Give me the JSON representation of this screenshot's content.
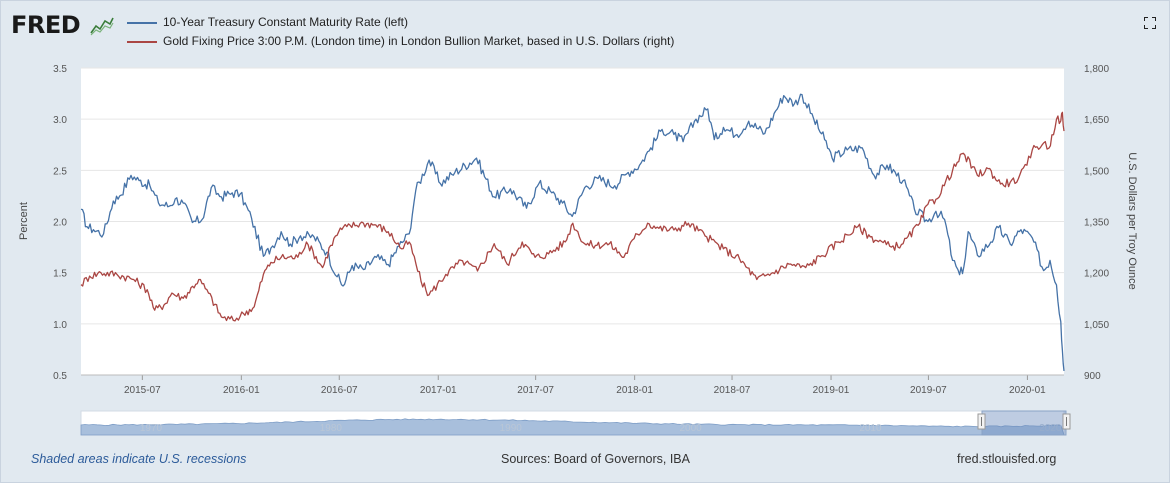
{
  "header": {
    "logo_text": "FRED",
    "fullscreen_icon": "expand-icon"
  },
  "legend": [
    {
      "label": "10-Year Treasury Constant Maturity Rate (left)",
      "color": "#4572a7"
    },
    {
      "label": "Gold Fixing Price 3:00 P.M. (London time) in London Bullion Market, based in U.S. Dollars (right)",
      "color": "#aa4643"
    }
  ],
  "chart_data": {
    "type": "line",
    "title": "",
    "xlabel": "",
    "ylabel_left": "Percent",
    "ylabel_right": "U.S. Dollars per Troy Ounce",
    "xlim": [
      "2015-03-09",
      "2020-03-09"
    ],
    "ylim_left": [
      0.5,
      3.5
    ],
    "ylim_right": [
      900,
      1800
    ],
    "yticks_left": [
      "0.5",
      "1.0",
      "1.5",
      "2.0",
      "2.5",
      "3.0",
      "3.5"
    ],
    "yticks_right": [
      "900",
      "1,050",
      "1,200",
      "1,350",
      "1,500",
      "1,650",
      "1,800"
    ],
    "xticks": [
      "2015-07",
      "2016-01",
      "2016-07",
      "2017-01",
      "2017-07",
      "2018-01",
      "2018-07",
      "2019-01",
      "2019-07",
      "2020-01"
    ],
    "grid": true,
    "series": [
      {
        "name": "10-Year Treasury Constant Maturity Rate (left)",
        "axis": "left",
        "color": "#4572a7",
        "x": [
          "2015-03-09",
          "2015-03-20",
          "2015-04-01",
          "2015-04-20",
          "2015-05-08",
          "2015-05-20",
          "2015-06-10",
          "2015-06-25",
          "2015-07-15",
          "2015-07-31",
          "2015-08-20",
          "2015-08-31",
          "2015-09-15",
          "2015-10-02",
          "2015-10-20",
          "2015-11-06",
          "2015-11-25",
          "2015-12-15",
          "2015-12-30",
          "2016-01-20",
          "2016-02-11",
          "2016-02-25",
          "2016-03-15",
          "2016-04-01",
          "2016-04-20",
          "2016-05-15",
          "2016-06-08",
          "2016-06-27",
          "2016-07-08",
          "2016-07-25",
          "2016-08-15",
          "2016-09-08",
          "2016-09-30",
          "2016-10-20",
          "2016-11-08",
          "2016-11-20",
          "2016-12-15",
          "2017-01-05",
          "2017-02-01",
          "2017-03-13",
          "2017-04-15",
          "2017-05-15",
          "2017-06-14",
          "2017-07-07",
          "2017-07-31",
          "2017-08-20",
          "2017-09-07",
          "2017-09-30",
          "2017-10-25",
          "2017-11-25",
          "2017-12-20",
          "2018-01-10",
          "2018-01-31",
          "2018-02-21",
          "2018-03-15",
          "2018-04-01",
          "2018-04-25",
          "2018-05-17",
          "2018-05-29",
          "2018-06-15",
          "2018-07-10",
          "2018-08-01",
          "2018-08-31",
          "2018-09-20",
          "2018-10-05",
          "2018-10-25",
          "2018-11-08",
          "2018-11-30",
          "2018-12-20",
          "2019-01-03",
          "2019-01-31",
          "2019-02-28",
          "2019-03-22",
          "2019-04-15",
          "2019-05-15",
          "2019-06-05",
          "2019-06-30",
          "2019-07-15",
          "2019-07-31",
          "2019-08-15",
          "2019-08-28",
          "2019-09-05",
          "2019-09-13",
          "2019-09-30",
          "2019-10-25",
          "2019-11-08",
          "2019-11-30",
          "2019-12-20",
          "2020-01-10",
          "2020-01-31",
          "2020-02-12",
          "2020-02-24",
          "2020-03-03",
          "2020-03-06",
          "2020-03-09"
        ],
        "values": [
          2.12,
          1.95,
          1.92,
          1.88,
          2.2,
          2.25,
          2.45,
          2.4,
          2.35,
          2.18,
          2.15,
          2.22,
          2.18,
          1.99,
          2.02,
          2.33,
          2.24,
          2.28,
          2.27,
          2.03,
          1.66,
          1.74,
          1.9,
          1.78,
          1.86,
          1.85,
          1.7,
          1.46,
          1.37,
          1.57,
          1.53,
          1.65,
          1.58,
          1.76,
          1.88,
          2.3,
          2.6,
          2.37,
          2.48,
          2.62,
          2.24,
          2.32,
          2.13,
          2.37,
          2.28,
          2.18,
          2.05,
          2.33,
          2.42,
          2.35,
          2.48,
          2.55,
          2.72,
          2.9,
          2.85,
          2.78,
          3.0,
          3.1,
          2.8,
          2.92,
          2.85,
          2.98,
          2.86,
          3.08,
          3.23,
          3.15,
          3.24,
          3.0,
          2.8,
          2.62,
          2.7,
          2.72,
          2.45,
          2.55,
          2.4,
          2.12,
          2.0,
          2.1,
          2.02,
          1.62,
          1.48,
          1.56,
          1.9,
          1.67,
          1.8,
          1.94,
          1.78,
          1.92,
          1.84,
          1.52,
          1.62,
          1.38,
          1.02,
          0.74,
          0.54
        ]
      },
      {
        "name": "Gold Fixing Price 3:00 P.M. (London time) in London Bullion Market, based in U.S. Dollars (right)",
        "axis": "right",
        "color": "#aa4643",
        "x": [
          "2015-03-09",
          "2015-03-25",
          "2015-04-15",
          "2015-05-15",
          "2015-06-15",
          "2015-07-10",
          "2015-07-24",
          "2015-08-10",
          "2015-08-25",
          "2015-09-15",
          "2015-10-14",
          "2015-11-01",
          "2015-11-25",
          "2015-12-17",
          "2016-01-05",
          "2016-01-25",
          "2016-02-11",
          "2016-02-25",
          "2016-03-15",
          "2016-04-15",
          "2016-05-01",
          "2016-05-31",
          "2016-06-15",
          "2016-06-30",
          "2016-07-15",
          "2016-08-15",
          "2016-09-07",
          "2016-09-30",
          "2016-10-25",
          "2016-11-08",
          "2016-11-30",
          "2016-12-15",
          "2017-01-15",
          "2017-02-15",
          "2017-03-15",
          "2017-04-15",
          "2017-05-09",
          "2017-06-06",
          "2017-06-30",
          "2017-07-25",
          "2017-08-25",
          "2017-09-08",
          "2017-09-30",
          "2017-10-20",
          "2017-11-15",
          "2017-12-12",
          "2017-12-31",
          "2018-01-25",
          "2018-02-15",
          "2018-03-15",
          "2018-04-11",
          "2018-05-15",
          "2018-06-15",
          "2018-07-15",
          "2018-08-16",
          "2018-09-15",
          "2018-10-15",
          "2018-11-15",
          "2018-12-15",
          "2019-01-15",
          "2019-02-20",
          "2019-03-15",
          "2019-04-23",
          "2019-05-15",
          "2019-06-15",
          "2019-06-30",
          "2019-07-15",
          "2019-08-15",
          "2019-09-04",
          "2019-09-30",
          "2019-10-20",
          "2019-11-12",
          "2019-11-30",
          "2019-12-15",
          "2019-12-31",
          "2020-01-10",
          "2020-01-31",
          "2020-02-10",
          "2020-02-24",
          "2020-03-03",
          "2020-03-06",
          "2020-03-09"
        ],
        "values": [
          1165,
          1190,
          1200,
          1195,
          1180,
          1150,
          1090,
          1105,
          1140,
          1125,
          1180,
          1140,
          1070,
          1060,
          1080,
          1100,
          1195,
          1230,
          1245,
          1245,
          1290,
          1215,
          1280,
          1320,
          1335,
          1345,
          1340,
          1320,
          1270,
          1290,
          1175,
          1135,
          1195,
          1235,
          1205,
          1285,
          1225,
          1290,
          1245,
          1255,
          1290,
          1345,
          1285,
          1280,
          1285,
          1245,
          1300,
          1345,
          1330,
          1325,
          1345,
          1305,
          1270,
          1240,
          1180,
          1200,
          1225,
          1215,
          1250,
          1290,
          1335,
          1305,
          1275,
          1285,
          1345,
          1400,
          1415,
          1500,
          1550,
          1485,
          1505,
          1460,
          1465,
          1475,
          1515,
          1560,
          1580,
          1565,
          1650,
          1645,
          1670,
          1615
        ]
      }
    ]
  },
  "navigator": {
    "labels": [
      "1970",
      "1980",
      "1990",
      "2000",
      "2010",
      "2020"
    ]
  },
  "footer": {
    "note": "Shaded areas indicate U.S. recessions",
    "sources": "Sources: Board of Governors, IBA",
    "url": "fred.stlouisfed.org"
  }
}
